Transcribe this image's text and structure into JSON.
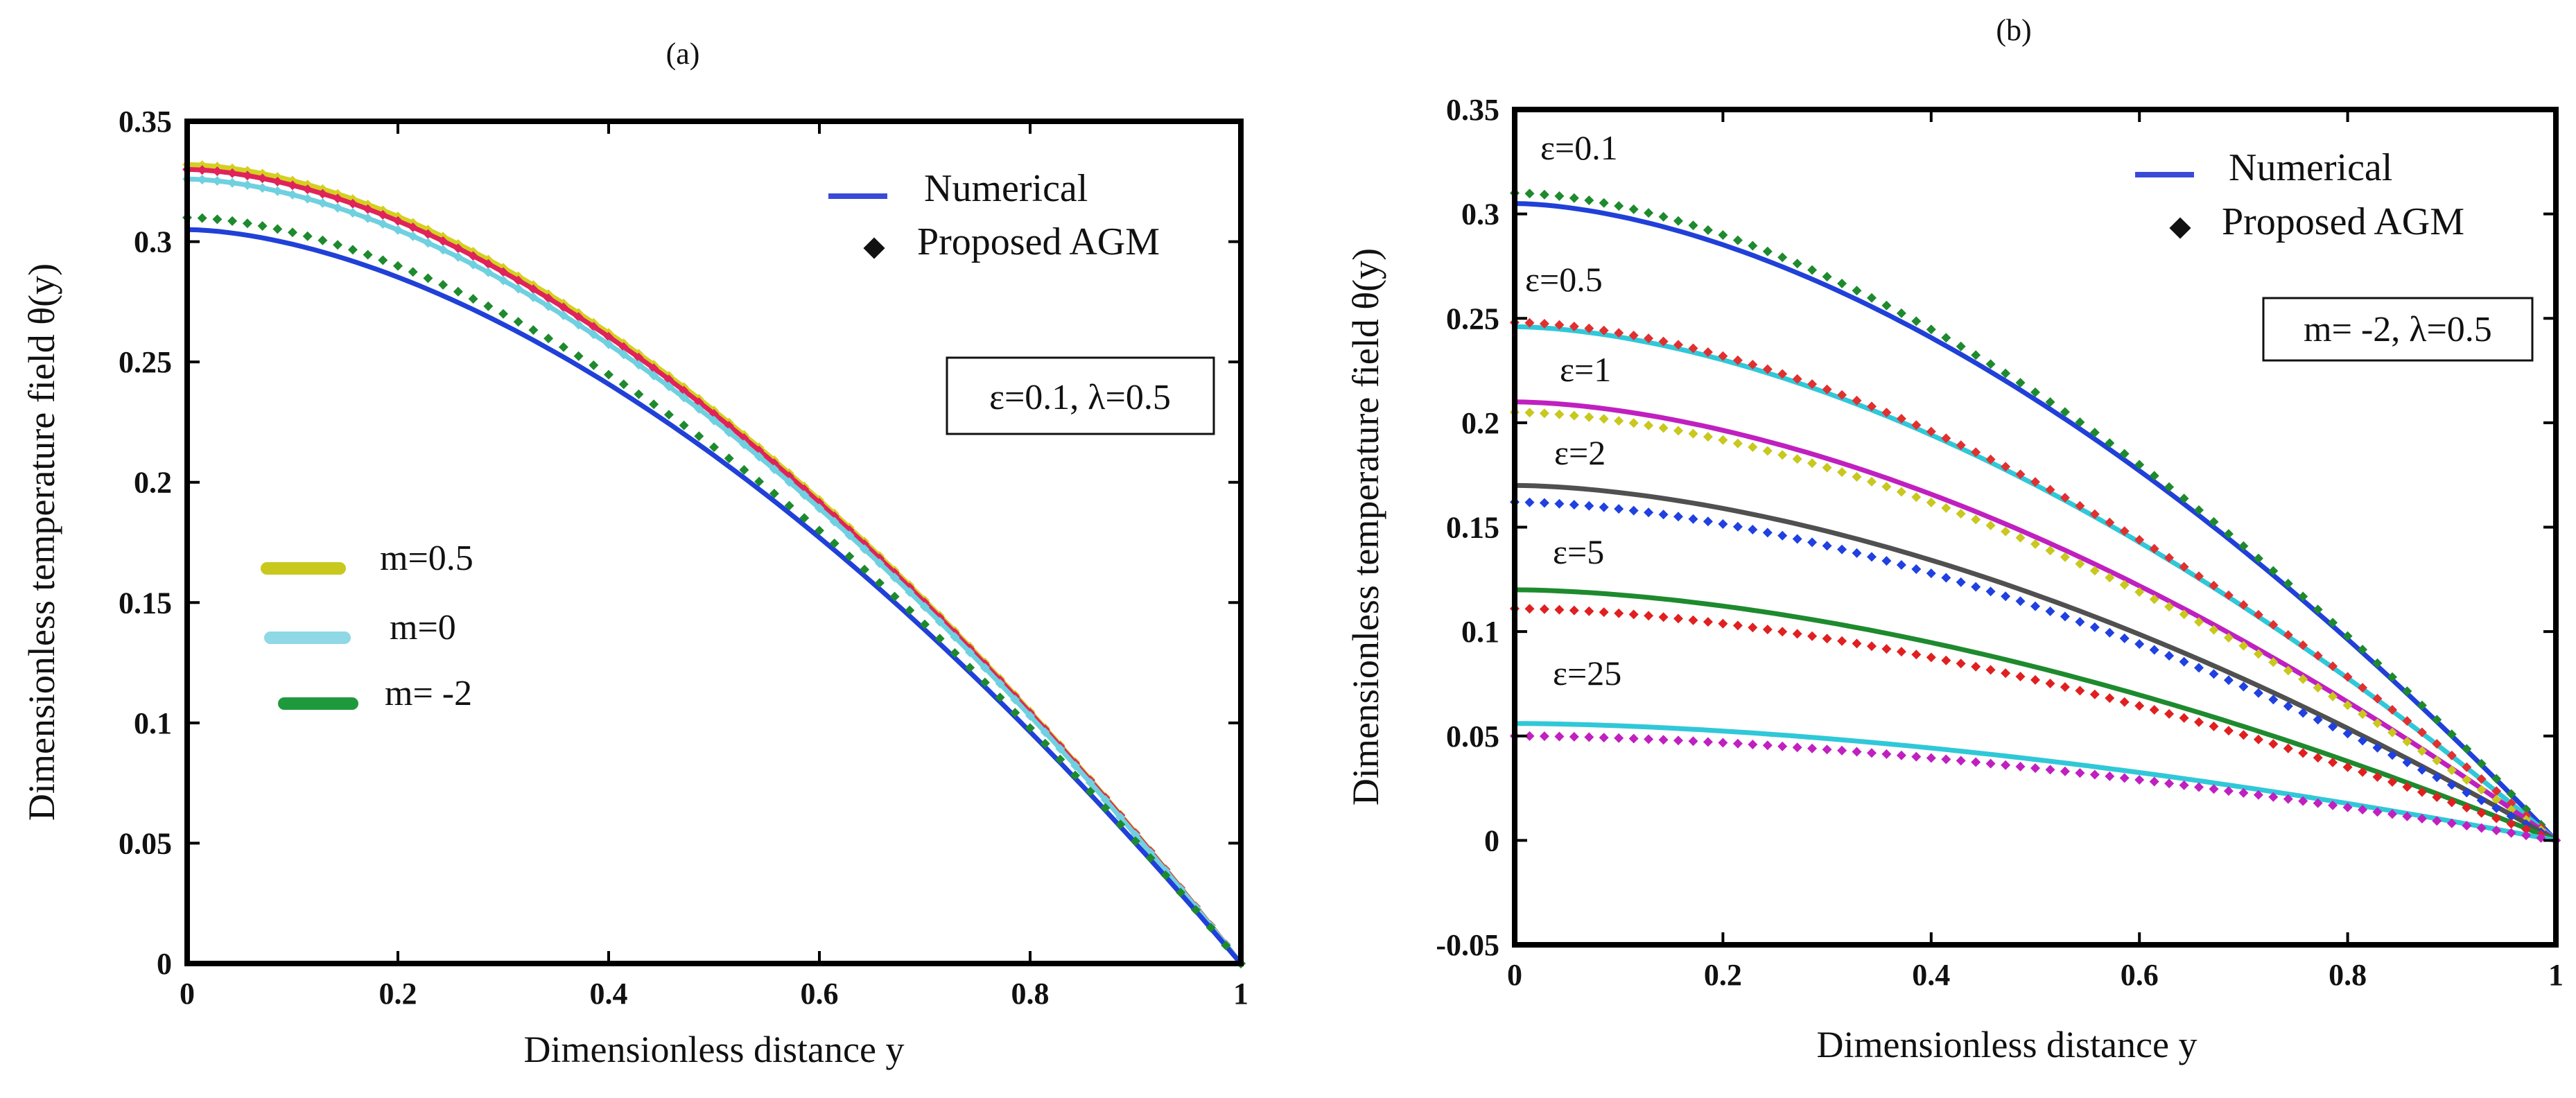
{
  "chart_data": [
    {
      "type": "line",
      "panel_label": "(a)",
      "xlabel": "Dimensionless distance  y",
      "ylabel": "Dimensionless temperature field θ(y)",
      "xlim": [
        0,
        1
      ],
      "ylim": [
        0,
        0.35
      ],
      "xticks": [
        "0",
        "0.2",
        "0.4",
        "0.6",
        "0.8",
        "1"
      ],
      "yticks": [
        "0",
        "0.05",
        "0.1",
        "0.15",
        "0.2",
        "0.25",
        "0.3",
        "0.35"
      ],
      "legend_method": {
        "numerical": "Numerical",
        "agm": "Proposed AGM"
      },
      "parameter_box": "ε=0.1,  λ=0.5",
      "m_legend": [
        {
          "label": "m=0.5",
          "color": "#c8c81e"
        },
        {
          "label": "m=0",
          "color": "#8fd8e6"
        },
        {
          "label": "m= -2",
          "color": "#1e9a3c"
        }
      ],
      "series": [
        {
          "color": "#d4d020",
          "marker_color": "#d4d020",
          "theta0": 0.332
        },
        {
          "color": "#e0245a",
          "marker_color": "#e0245a",
          "theta0": 0.33
        },
        {
          "color": "#6fd0e0",
          "marker_color": "#6fd0e0",
          "theta0": 0.326
        },
        {
          "color": "#2040d8",
          "marker_color": "#1e8a2e",
          "theta0": 0.305,
          "marker_theta0": 0.31
        }
      ]
    },
    {
      "type": "line",
      "panel_label": "(b)",
      "xlabel": "Dimensionless distance  y",
      "ylabel": "Dimensionless temperature field θ(y)",
      "xlim": [
        0,
        1
      ],
      "ylim": [
        -0.05,
        0.35
      ],
      "xticks": [
        "0",
        "0.2",
        "0.4",
        "0.6",
        "0.8",
        "1"
      ],
      "yticks": [
        "-0.05",
        "0",
        "0.05",
        "0.1",
        "0.15",
        "0.2",
        "0.25",
        "0.3",
        "0.35"
      ],
      "legend_method": {
        "numerical": "Numerical",
        "agm": "Proposed AGM"
      },
      "parameter_box": "m= -2,  λ=0.5",
      "epsilon_labels": [
        "ε=0.1",
        "ε=0.5",
        "ε=1",
        "ε=2",
        "ε=5",
        "ε=25"
      ],
      "series": [
        {
          "label": "ε=0.1",
          "line_color": "#2040d8",
          "line_theta0": 0.305,
          "marker_color": "#1e8a2e",
          "marker_theta0": 0.31
        },
        {
          "label": "ε=0.5",
          "line_color": "#30c8d8",
          "line_theta0": 0.246,
          "marker_color": "#e03030",
          "marker_theta0": 0.248
        },
        {
          "label": "ε=1",
          "line_color": "#c020c0",
          "line_theta0": 0.21,
          "marker_color": "#c8c81e",
          "marker_theta0": 0.205
        },
        {
          "label": "ε=2",
          "line_color": "#505050",
          "line_theta0": 0.17,
          "marker_color": "#2040e0",
          "marker_theta0": 0.162
        },
        {
          "label": "ε=5",
          "line_color": "#1e8a2e",
          "line_theta0": 0.12,
          "marker_color": "#e02020",
          "marker_theta0": 0.111
        },
        {
          "label": "ε=25",
          "line_color": "#30c8d8",
          "line_theta0": 0.056,
          "marker_color": "#c020c0",
          "marker_theta0": 0.05
        }
      ]
    }
  ]
}
